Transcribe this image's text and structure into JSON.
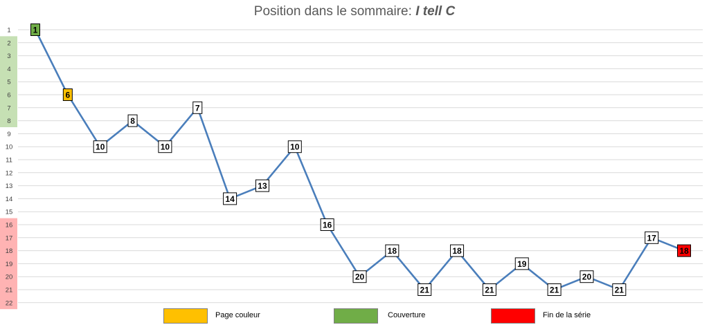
{
  "chart_data": {
    "type": "line",
    "title_prefix": "Position dans le sommaire: ",
    "title_series": "I tell C",
    "y_ticks": [
      1,
      2,
      3,
      4,
      5,
      6,
      7,
      8,
      9,
      10,
      11,
      12,
      13,
      14,
      15,
      16,
      17,
      18,
      19,
      20,
      21,
      22
    ],
    "ylim": [
      1,
      22
    ],
    "y_inverted": true,
    "grid": true,
    "line_color": "#4a7ebb",
    "values": [
      1,
      6,
      10,
      8,
      10,
      7,
      14,
      13,
      10,
      16,
      20,
      18,
      21,
      18,
      21,
      19,
      21,
      20,
      21,
      17,
      18
    ],
    "point_kinds": [
      "couverture",
      "page_couleur",
      "normal",
      "normal",
      "normal",
      "normal",
      "normal",
      "normal",
      "normal",
      "normal",
      "normal",
      "normal",
      "normal",
      "normal",
      "normal",
      "normal",
      "normal",
      "normal",
      "normal",
      "normal",
      "fin"
    ],
    "bands": [
      {
        "from": 2,
        "to": 8,
        "color": "#c6e0b4"
      },
      {
        "from": 16,
        "to": 22,
        "color": "#ffb3b3"
      }
    ],
    "colors": {
      "couverture": "#70ad47",
      "page_couleur": "#ffc000",
      "fin": "#ff0000",
      "normal": "#ffffff"
    },
    "legend": [
      {
        "key": "page_couleur",
        "label": "Page couleur",
        "color": "#ffc000"
      },
      {
        "key": "couverture",
        "label": "Couverture",
        "color": "#70ad47"
      },
      {
        "key": "fin",
        "label": "Fin de la série",
        "color": "#ff0000"
      }
    ]
  }
}
